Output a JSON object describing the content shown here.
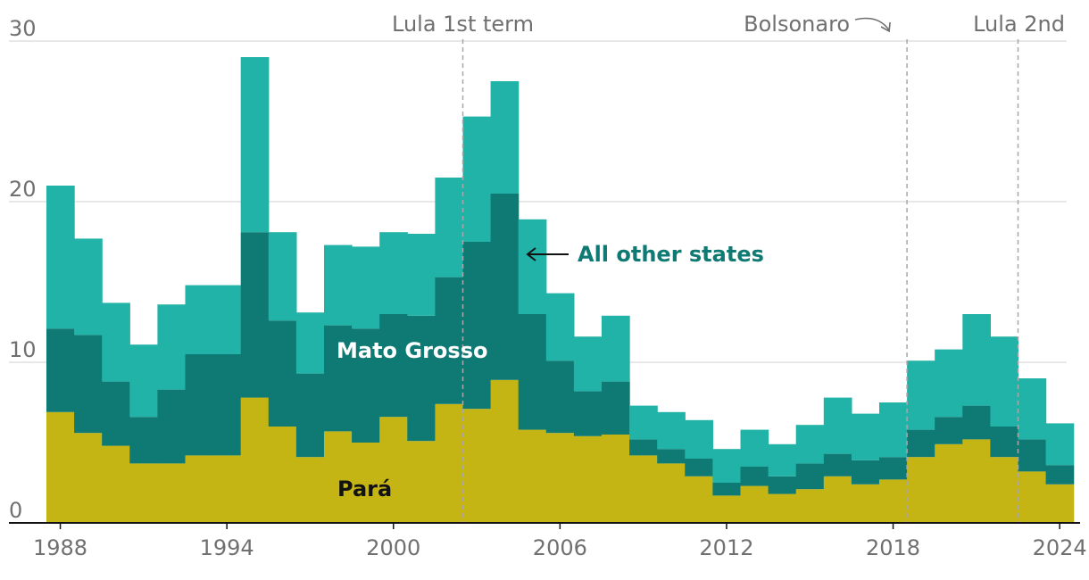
{
  "chart_data": {
    "type": "area",
    "stacked": true,
    "step": true,
    "x": [
      1988,
      1989,
      1990,
      1991,
      1992,
      1993,
      1994,
      1995,
      1996,
      1997,
      1998,
      1999,
      2000,
      2001,
      2002,
      2003,
      2004,
      2005,
      2006,
      2007,
      2008,
      2009,
      2010,
      2011,
      2012,
      2013,
      2014,
      2015,
      2016,
      2017,
      2018,
      2019,
      2020,
      2021,
      2022,
      2023,
      2024
    ],
    "series": [
      {
        "name": "Pará",
        "color": "#c4b515",
        "values": [
          6.9,
          5.6,
          4.8,
          3.7,
          3.7,
          4.2,
          4.2,
          7.8,
          6.0,
          4.1,
          5.7,
          5.0,
          6.6,
          5.1,
          7.4,
          7.1,
          8.9,
          5.8,
          5.6,
          5.4,
          5.5,
          4.2,
          3.7,
          2.9,
          1.7,
          2.3,
          1.8,
          2.1,
          2.9,
          2.4,
          2.7,
          4.1,
          4.9,
          5.2,
          4.1,
          3.2,
          2.4
        ]
      },
      {
        "name": "Mato Grosso",
        "color": "#0e7a73",
        "values": [
          5.2,
          6.1,
          4.0,
          2.9,
          4.6,
          6.3,
          6.3,
          10.3,
          6.6,
          5.2,
          6.6,
          7.1,
          6.4,
          7.8,
          7.9,
          10.4,
          11.6,
          7.2,
          4.5,
          2.8,
          3.3,
          1.0,
          0.9,
          1.1,
          0.8,
          1.2,
          1.1,
          1.6,
          1.4,
          1.5,
          1.4,
          1.7,
          1.7,
          2.1,
          1.9,
          2.0,
          1.2
        ]
      },
      {
        "name": "All other states",
        "color": "#22b3a8",
        "values": [
          8.9,
          6.0,
          4.9,
          4.5,
          5.3,
          4.3,
          4.3,
          10.9,
          5.5,
          3.8,
          5.0,
          5.1,
          5.1,
          5.1,
          6.2,
          7.8,
          7.0,
          5.9,
          4.2,
          3.4,
          4.1,
          2.1,
          2.3,
          2.4,
          2.1,
          2.3,
          2.0,
          2.4,
          3.5,
          2.9,
          3.4,
          4.3,
          4.2,
          5.7,
          5.6,
          3.8,
          2.6
        ]
      }
    ],
    "series_labels": {
      "para": "Pará",
      "mato_grosso": "Mato Grosso",
      "other": "All other states"
    },
    "series_label_colors": {
      "para": "#121212",
      "mato_grosso": "#ffffff",
      "other": "#0e7a73"
    },
    "ylim": [
      0,
      30
    ],
    "yticks": [
      0,
      10,
      20,
      30
    ],
    "xticks": [
      1988,
      1994,
      2000,
      2006,
      2012,
      2018,
      2024
    ],
    "title": "",
    "xlabel": "",
    "ylabel": "",
    "grid": true,
    "annotations": [
      {
        "label": "Lula 1st term",
        "x": 2003
      },
      {
        "label": "Bolsonaro",
        "x": 2019
      },
      {
        "label": "Lula 2nd",
        "x": 2023
      }
    ]
  }
}
